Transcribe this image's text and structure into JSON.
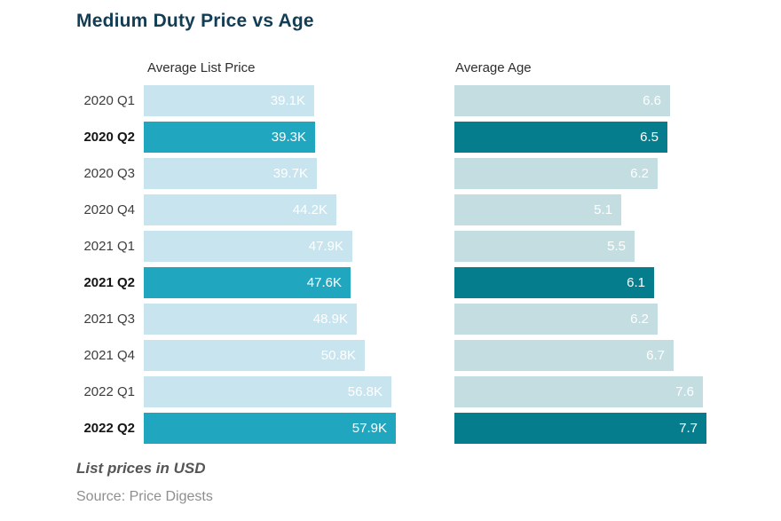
{
  "title": "Medium Duty Price vs Age",
  "footer": {
    "note": "List prices in USD",
    "source": "Source: Price Digests"
  },
  "colors": {
    "title": "#123d54",
    "price_bar": "#c8e4ee",
    "price_bar_highlight": "#21a6c0",
    "age_bar": "#c3dde1",
    "age_bar_highlight": "#067d8d",
    "bar_value_text": "#ffffff"
  },
  "chart_data": [
    {
      "type": "bar",
      "orientation": "horizontal",
      "title": "Average List Price",
      "unit": "USD (thousands)",
      "categories": [
        "2020 Q1",
        "2020 Q2",
        "2020 Q3",
        "2020 Q4",
        "2021 Q1",
        "2021 Q2",
        "2021 Q3",
        "2021 Q4",
        "2022 Q1",
        "2022 Q2"
      ],
      "values": [
        39.1,
        39.3,
        39.7,
        44.2,
        47.9,
        47.6,
        48.9,
        50.8,
        56.8,
        57.9
      ],
      "labels": [
        "39.1K",
        "39.3K",
        "39.7K",
        "44.2K",
        "47.9K",
        "47.6K",
        "48.9K",
        "50.8K",
        "56.8K",
        "57.9K"
      ],
      "highlighted_categories": [
        "2020 Q2",
        "2021 Q2",
        "2022 Q2"
      ],
      "highlight_indices": [
        1,
        5,
        9
      ],
      "xlim": [
        0,
        57.9
      ],
      "grid": false,
      "legend": false
    },
    {
      "type": "bar",
      "orientation": "horizontal",
      "title": "Average Age",
      "unit": "years",
      "categories": [
        "2020 Q1",
        "2020 Q2",
        "2020 Q3",
        "2020 Q4",
        "2021 Q1",
        "2021 Q2",
        "2021 Q3",
        "2021 Q4",
        "2022 Q1",
        "2022 Q2"
      ],
      "values": [
        6.6,
        6.5,
        6.2,
        5.1,
        5.5,
        6.1,
        6.2,
        6.7,
        7.6,
        7.7
      ],
      "labels": [
        "6.6",
        "6.5",
        "6.2",
        "5.1",
        "5.5",
        "6.1",
        "6.2",
        "6.7",
        "7.6",
        "7.7"
      ],
      "highlighted_categories": [
        "2020 Q2",
        "2021 Q2",
        "2022 Q2"
      ],
      "highlight_indices": [
        1,
        5,
        9
      ],
      "xlim": [
        0,
        7.7
      ],
      "grid": false,
      "legend": false
    }
  ]
}
